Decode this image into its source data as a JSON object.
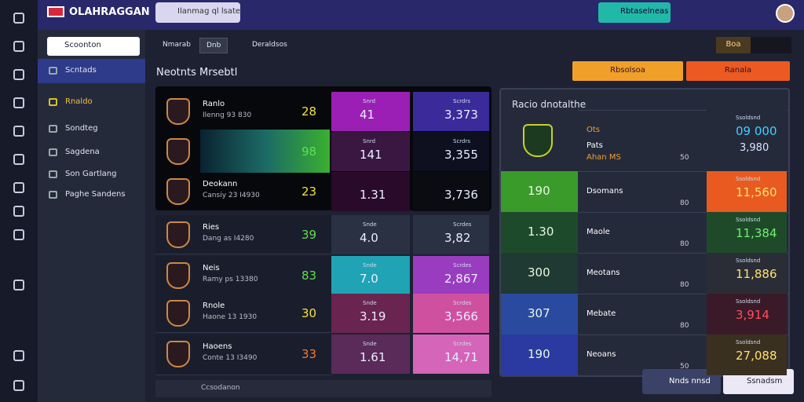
{
  "header": {
    "brand": "OLAHRAGGAN",
    "search": "Ilanmag ql lsatel",
    "action": "Rbtaselneas"
  },
  "sidebar": {
    "dropdown": "Scoonton",
    "items": [
      "Scntads",
      "Rnaldo",
      "Sondteg",
      "Sagdena",
      "Son Gartlang",
      "Paghe Sandens"
    ]
  },
  "tabs": [
    "Nmarab",
    "Dnb",
    "Deraldsos"
  ],
  "toggle": [
    "Boa",
    ""
  ],
  "title": "Neotnts Mrsebtl",
  "buttons": [
    "Rbsolsoa",
    "Ranala"
  ],
  "table": {
    "rows": [
      [
        "Ranlo",
        "Ilenng 93 830",
        "28",
        "Snrd",
        "41",
        "Scrdrs",
        "3,373"
      ],
      [
        "",
        "",
        "98",
        "Snrd",
        "141",
        "Scrdrs",
        "3,355"
      ],
      [
        "Deokann",
        "Cansiy 23 I4930",
        "23",
        "",
        "1.31",
        "",
        "3,736"
      ],
      [
        "Ries",
        "Dang as I4280",
        "39",
        "Snde",
        "4.0",
        "Scrdes",
        "3,82"
      ],
      [
        "Neis",
        "Ramy ps 13380",
        "83",
        "Snde",
        "7.0",
        "Scrdes",
        "2,867"
      ],
      [
        "Rnole",
        "Haone 13 1930",
        "30",
        "Snde",
        "3.19",
        "Scrdes",
        "3,566"
      ],
      [
        "Haoens",
        "Conte 13 I3490",
        "33",
        "Snde",
        "1.61",
        "Scrdes",
        "14,71"
      ]
    ]
  },
  "panel": {
    "title": "Racio dnotalthe",
    "rows": [
      [
        "",
        "Ots",
        "50",
        "Ssoldsnd",
        "09 000"
      ],
      [
        "190",
        "Dsomans",
        "80",
        "Ssoldsnd",
        "11,560"
      ],
      [
        "1.30",
        "Maole",
        "80",
        "Ssoldsnd",
        "11,384"
      ],
      [
        "300",
        "Meotans",
        "80",
        "Ssoldsnd",
        "11,886"
      ],
      [
        "307",
        "Mebate",
        "80",
        "Ssoldsnd",
        "3,914"
      ],
      [
        "190",
        "Neoans",
        "50",
        "Ssoldsnd",
        "27,088"
      ]
    ],
    "sub": [
      "Pats",
      "Ahan MS",
      "3,980"
    ]
  },
  "footer": {
    "status": "Ccsodanon",
    "buttons": [
      "Nnds nnsd",
      "Ssnadsm"
    ]
  }
}
